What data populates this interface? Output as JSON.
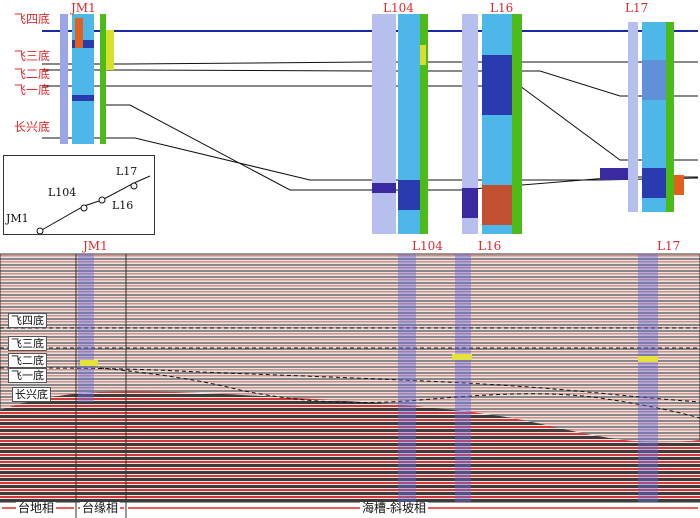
{
  "top_panel": {
    "wells": [
      "JM1",
      "L104",
      "L16",
      "L17"
    ],
    "horizons": [
      "飞四底",
      "飞三底",
      "飞二底",
      "飞一底",
      "长兴底"
    ]
  },
  "location_map": {
    "wells": [
      "JM1",
      "L104",
      "L16",
      "L17"
    ]
  },
  "seismic_panel": {
    "wells": [
      "JM1",
      "L104",
      "L16",
      "L17"
    ],
    "horizons": [
      "飞四底",
      "飞三底",
      "飞二底",
      "飞一底",
      "长兴底"
    ],
    "facies": [
      "台地相",
      "台缘相",
      "海槽-斜坡相"
    ]
  },
  "colors": {
    "label_red": "#e0282a",
    "top_horizon_blue": "#1a2aa0",
    "log_blue": "#4db8e8",
    "log_green": "#4cbb17"
  }
}
